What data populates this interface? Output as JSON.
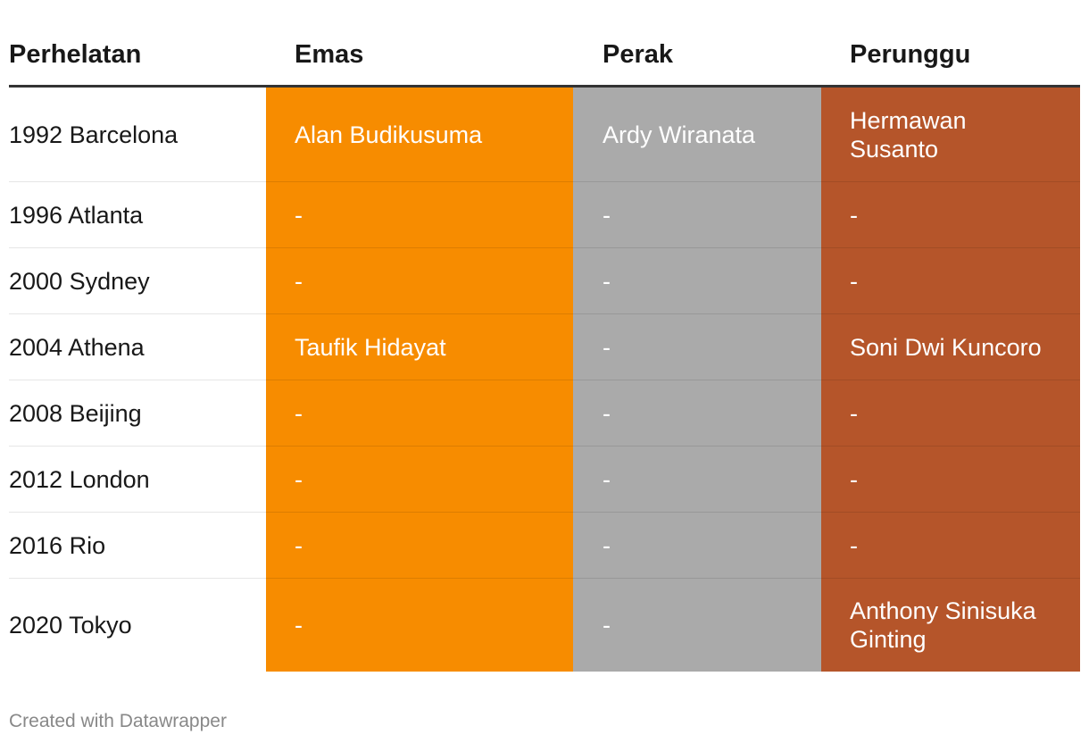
{
  "chart_data": {
    "type": "table",
    "columns": [
      "Perhelatan",
      "Emas",
      "Perak",
      "Perunggu"
    ],
    "colors": {
      "emas": "#f78c00",
      "perak": "#aaaaaa",
      "perunggu": "#b5552a",
      "header_rule": "#333333"
    },
    "rows": [
      {
        "event": "1992 Barcelona",
        "gold": "Alan Budikusuma",
        "silver": "Ardy Wiranata",
        "bronze": "Hermawan Susanto"
      },
      {
        "event": "1996 Atlanta",
        "gold": "-",
        "silver": "-",
        "bronze": "-"
      },
      {
        "event": "2000 Sydney",
        "gold": "-",
        "silver": "-",
        "bronze": "-"
      },
      {
        "event": "2004 Athena",
        "gold": "Taufik Hidayat",
        "silver": "-",
        "bronze": "Soni Dwi Kuncoro"
      },
      {
        "event": "2008 Beijing",
        "gold": "-",
        "silver": "-",
        "bronze": "-"
      },
      {
        "event": "2012 London",
        "gold": "-",
        "silver": "-",
        "bronze": "-"
      },
      {
        "event": "2016 Rio",
        "gold": "-",
        "silver": "-",
        "bronze": "-"
      },
      {
        "event": "2020 Tokyo",
        "gold": "-",
        "silver": "-",
        "bronze": "Anthony Sinisuka Ginting"
      }
    ]
  },
  "footer": {
    "credit": "Created with Datawrapper"
  }
}
